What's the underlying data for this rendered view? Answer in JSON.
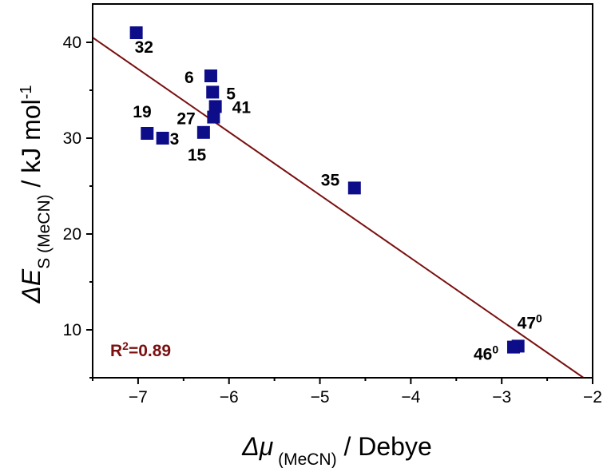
{
  "chart_data": {
    "type": "scatter",
    "xlim": [
      -7.5,
      -2.0
    ],
    "ylim": [
      5,
      44
    ],
    "xticks": [
      -7,
      -6,
      -5,
      -4,
      -3,
      -2
    ],
    "yticks": [
      10,
      20,
      30,
      40
    ],
    "xtick_labels": [
      "−7",
      "−6",
      "−5",
      "−4",
      "−3",
      "−2"
    ],
    "ytick_labels": [
      "10",
      "20",
      "30",
      "40"
    ],
    "xlabel": {
      "main": "Δμ",
      "sub": " (MeCN)",
      "tail": " / Debye"
    },
    "ylabel": {
      "main": "ΔE",
      "sub": "S (MeCN)",
      "tail": " / kJ mol",
      "sup": "-1"
    },
    "grid": false,
    "marker_color": "#0d0d8a",
    "fit_color": "#7b1010",
    "fit_line": {
      "x": [
        -7.5,
        -2.1
      ],
      "y": [
        40.5,
        5.0
      ]
    },
    "r_squared": {
      "prefix": "R",
      "sup": "2",
      "suffix": "=0.89"
    },
    "points": [
      {
        "x": -7.02,
        "y": 41.0,
        "label": "32",
        "sup": ""
      },
      {
        "x": -6.2,
        "y": 36.5,
        "label": "6",
        "sup": ""
      },
      {
        "x": -6.18,
        "y": 34.8,
        "label": "5",
        "sup": ""
      },
      {
        "x": -6.15,
        "y": 33.3,
        "label": "41",
        "sup": ""
      },
      {
        "x": -6.17,
        "y": 32.2,
        "label": "27",
        "sup": ""
      },
      {
        "x": -6.9,
        "y": 30.5,
        "label": "19",
        "sup": ""
      },
      {
        "x": -6.73,
        "y": 30.0,
        "label": "3",
        "sup": ""
      },
      {
        "x": -6.28,
        "y": 30.6,
        "label": "15",
        "sup": ""
      },
      {
        "x": -4.62,
        "y": 24.8,
        "label": "35",
        "sup": ""
      },
      {
        "x": -2.82,
        "y": 8.3,
        "label": "47",
        "sup": "0"
      },
      {
        "x": -2.87,
        "y": 8.2,
        "label": "46",
        "sup": "0"
      }
    ]
  }
}
